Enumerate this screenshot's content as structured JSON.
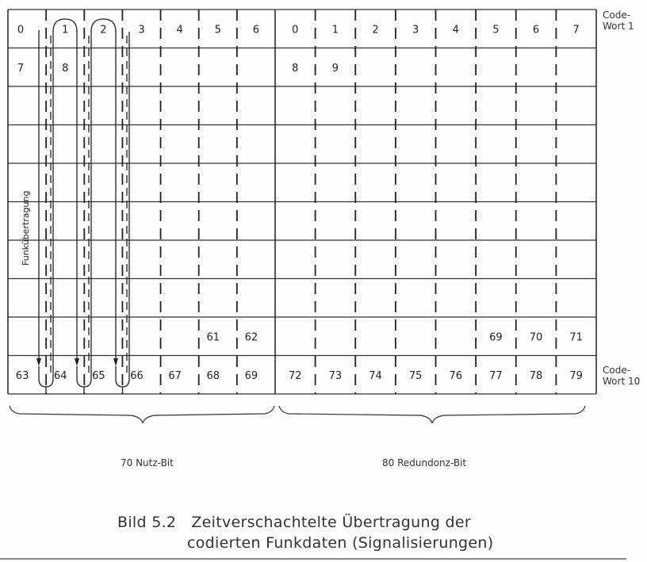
{
  "grid": {
    "columns_left": [
      "0",
      "1",
      "2",
      "3",
      "4",
      "5",
      "6"
    ],
    "columns_right": [
      "0",
      "1",
      "2",
      "3",
      "4",
      "5",
      "6",
      "7"
    ],
    "rows": [
      {
        "left": [
          "0",
          "1",
          "2",
          "3",
          "4",
          "5",
          "6"
        ],
        "right": [
          "0",
          "1",
          "2",
          "3",
          "4",
          "5",
          "6",
          "7"
        ]
      },
      {
        "left": [
          "7",
          "8",
          "",
          "",
          "",
          "",
          ""
        ],
        "right": [
          "8",
          "9",
          "",
          "",
          "",
          "",
          "",
          ""
        ]
      },
      {
        "left": [
          "",
          "",
          "",
          "",
          "",
          "",
          ""
        ],
        "right": [
          "",
          "",
          "",
          "",
          "",
          "",
          "",
          ""
        ]
      },
      {
        "left": [
          "",
          "",
          "",
          "",
          "",
          "",
          ""
        ],
        "right": [
          "",
          "",
          "",
          "",
          "",
          "",
          "",
          ""
        ]
      },
      {
        "left": [
          "",
          "",
          "",
          "",
          "",
          "",
          ""
        ],
        "right": [
          "",
          "",
          "",
          "",
          "",
          "",
          "",
          ""
        ]
      },
      {
        "left": [
          "",
          "",
          "",
          "",
          "",
          "",
          ""
        ],
        "right": [
          "",
          "",
          "",
          "",
          "",
          "",
          "",
          ""
        ]
      },
      {
        "left": [
          "",
          "",
          "",
          "",
          "",
          "",
          ""
        ],
        "right": [
          "",
          "",
          "",
          "",
          "",
          "",
          "",
          ""
        ]
      },
      {
        "left": [
          "",
          "",
          "",
          "",
          "",
          "",
          ""
        ],
        "right": [
          "",
          "",
          "",
          "",
          "",
          "",
          "",
          ""
        ]
      },
      {
        "left": [
          "",
          "",
          "",
          "",
          "",
          "61",
          "62"
        ],
        "right": [
          "",
          "",
          "",
          "",
          "",
          "69",
          "70",
          "71"
        ]
      },
      {
        "left": [
          "63",
          "64",
          "65",
          "66",
          "67",
          "68",
          "69"
        ],
        "right": [
          "72",
          "73",
          "74",
          "75",
          "76",
          "77",
          "78",
          "79"
        ]
      }
    ]
  },
  "codeword_first": [
    "Code-",
    "Wort 1"
  ],
  "codeword_last": [
    "Code-",
    "Wort 10"
  ],
  "transmission_label": "Funkübertragung",
  "brace_left_label": "70 Nutz-Bit",
  "brace_right_label": "80 Redundonz-Bit",
  "caption_line1": "Bild 5.2   Zeitverschachtelte Übertragung der",
  "caption_line2": "codierten Funkdaten (Signalisierungen)"
}
